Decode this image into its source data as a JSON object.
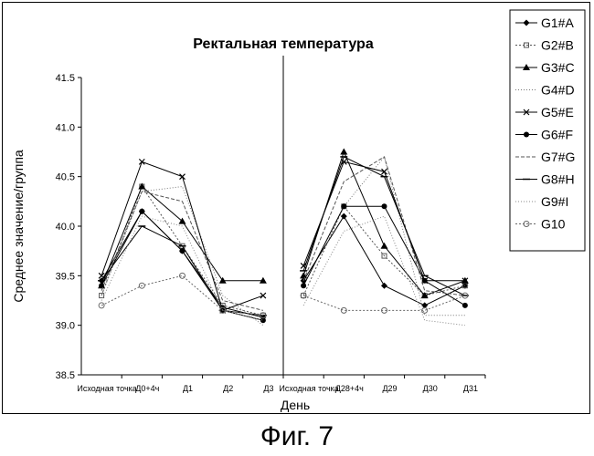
{
  "chart_data": {
    "type": "line",
    "title": "Ректальная температура",
    "xlabel": "День",
    "ylabel": "Среднее значение/группа",
    "ylim": [
      38.5,
      41.5
    ],
    "yticks": [
      "38.5",
      "39.0",
      "39.5",
      "40.0",
      "40.5",
      "41.0",
      "41.5"
    ],
    "categories": [
      "Исходная точка",
      "Д0+4ч",
      "Д1",
      "Д2",
      "Д3",
      "Исходная точка",
      "Д28+4ч",
      "Д29",
      "Д30",
      "Д31"
    ],
    "divider_after_category": 4,
    "grid": false,
    "legend_position": "right",
    "series": [
      {
        "name": "G1#A",
        "values": [
          39.45,
          40.15,
          39.75,
          39.18,
          39.08,
          39.45,
          40.1,
          39.4,
          39.2,
          39.4
        ]
      },
      {
        "name": "G2#B",
        "values": [
          39.3,
          40.4,
          39.8,
          39.2,
          39.1,
          39.3,
          40.2,
          39.7,
          39.3,
          39.4
        ]
      },
      {
        "name": "G3#C",
        "values": [
          39.4,
          40.4,
          40.05,
          39.45,
          39.45,
          39.5,
          40.75,
          39.8,
          39.3,
          39.45
        ]
      },
      {
        "name": "G4#D",
        "values": [
          39.3,
          40.35,
          40.4,
          39.3,
          39.0,
          39.4,
          40.2,
          40.7,
          39.1,
          39.1
        ]
      },
      {
        "name": "G5#E",
        "values": [
          39.5,
          40.65,
          40.5,
          39.15,
          39.3,
          39.6,
          40.65,
          40.55,
          39.45,
          39.45
        ]
      },
      {
        "name": "G6#F",
        "values": [
          39.4,
          40.15,
          39.75,
          39.15,
          39.05,
          39.4,
          40.2,
          40.2,
          39.45,
          39.2
        ]
      },
      {
        "name": "G7#G",
        "values": [
          39.35,
          40.35,
          40.25,
          39.25,
          39.15,
          39.45,
          40.45,
          40.7,
          39.35,
          39.3
        ]
      },
      {
        "name": "G8#H",
        "values": [
          39.45,
          40.0,
          39.8,
          39.15,
          39.1,
          39.55,
          40.7,
          40.5,
          39.5,
          39.3
        ]
      },
      {
        "name": "G9#I",
        "values": [
          39.25,
          40.1,
          40.0,
          39.15,
          39.05,
          39.2,
          39.95,
          40.1,
          39.05,
          39.0
        ]
      },
      {
        "name": "G10",
        "values": [
          39.2,
          39.4,
          39.5,
          39.15,
          39.1,
          39.3,
          39.15,
          39.15,
          39.15,
          39.3
        ]
      }
    ]
  },
  "caption": "Фиг. 7"
}
